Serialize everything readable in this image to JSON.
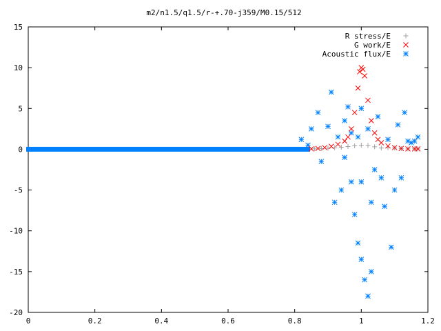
{
  "chart_data": {
    "type": "scatter",
    "title": "m2/n1.5/q1.5/r-+.70-j359/M0.15/512",
    "xlabel": "",
    "ylabel": "",
    "xlim": [
      0,
      1.2
    ],
    "ylim": [
      -20,
      15
    ],
    "x_ticks": [
      "0",
      "0.2",
      "0.4",
      "0.6",
      "0.8",
      "1",
      "1.2"
    ],
    "y_ticks": [
      "15",
      "10",
      "5",
      "0",
      "-5",
      "-10",
      "-15",
      "-20"
    ],
    "x_tick_values": [
      0,
      0.2,
      0.4,
      0.6,
      0.8,
      1.0,
      1.2
    ],
    "y_tick_values": [
      15,
      10,
      5,
      0,
      -5,
      -10,
      -15,
      -20
    ],
    "grid": false,
    "legend_position": "top-right",
    "series": [
      {
        "name": "R stress/E",
        "marker": "plus",
        "color": "#a0a0a0",
        "x": [
          0.86,
          0.88,
          0.9,
          0.92,
          0.94,
          0.96,
          0.98,
          1.0,
          1.02,
          1.04,
          1.06,
          1.08,
          1.1,
          1.12,
          1.14,
          1.16,
          1.17
        ],
        "y": [
          0.05,
          0.08,
          0.12,
          0.18,
          0.25,
          0.33,
          0.42,
          0.5,
          0.45,
          0.3,
          0.15,
          0.2,
          0.15,
          0.08,
          0.05,
          0.05,
          0.05
        ]
      },
      {
        "name": "G work/E",
        "marker": "cross",
        "color": "#ff0000",
        "x": [
          0.85,
          0.87,
          0.89,
          0.91,
          0.93,
          0.95,
          0.96,
          0.97,
          0.98,
          0.99,
          0.995,
          1.0,
          1.005,
          1.01,
          1.02,
          1.03,
          1.04,
          1.05,
          1.06,
          1.08,
          1.1,
          1.12,
          1.14,
          1.16,
          1.17
        ],
        "y": [
          0.05,
          0.1,
          0.2,
          0.35,
          0.6,
          1.0,
          1.5,
          2.5,
          4.5,
          7.5,
          9.5,
          10.0,
          9.8,
          9.0,
          6.0,
          3.5,
          2.0,
          1.2,
          0.8,
          0.4,
          0.2,
          0.1,
          0.05,
          0.05,
          0.05
        ]
      },
      {
        "name": "Acoustic flux/E",
        "marker": "star",
        "color": "#0080ff",
        "baseline": {
          "x_start": 0.0,
          "x_end": 0.84,
          "y": 0.0
        },
        "x": [
          0.82,
          0.84,
          0.85,
          0.87,
          0.88,
          0.9,
          0.91,
          0.92,
          0.93,
          0.94,
          0.95,
          0.95,
          0.96,
          0.97,
          0.97,
          0.98,
          0.99,
          0.99,
          1.0,
          1.0,
          1.0,
          1.01,
          1.02,
          1.02,
          1.03,
          1.03,
          1.04,
          1.05,
          1.06,
          1.07,
          1.08,
          1.09,
          1.1,
          1.11,
          1.12,
          1.13,
          1.14,
          1.15,
          1.16,
          1.17
        ],
        "y": [
          1.2,
          0.5,
          2.5,
          4.5,
          -1.5,
          2.8,
          7.0,
          -6.5,
          1.5,
          -5.0,
          3.5,
          -1.0,
          5.2,
          -4.0,
          2.0,
          -8.0,
          -11.5,
          1.5,
          -13.5,
          -4.0,
          5.0,
          -16.0,
          -18.0,
          2.5,
          -15.0,
          -6.5,
          -2.5,
          4.0,
          -3.5,
          -7.0,
          1.2,
          -12.0,
          -5.0,
          3.0,
          -3.5,
          4.5,
          1.0,
          0.8,
          1.0,
          1.5
        ]
      }
    ]
  }
}
